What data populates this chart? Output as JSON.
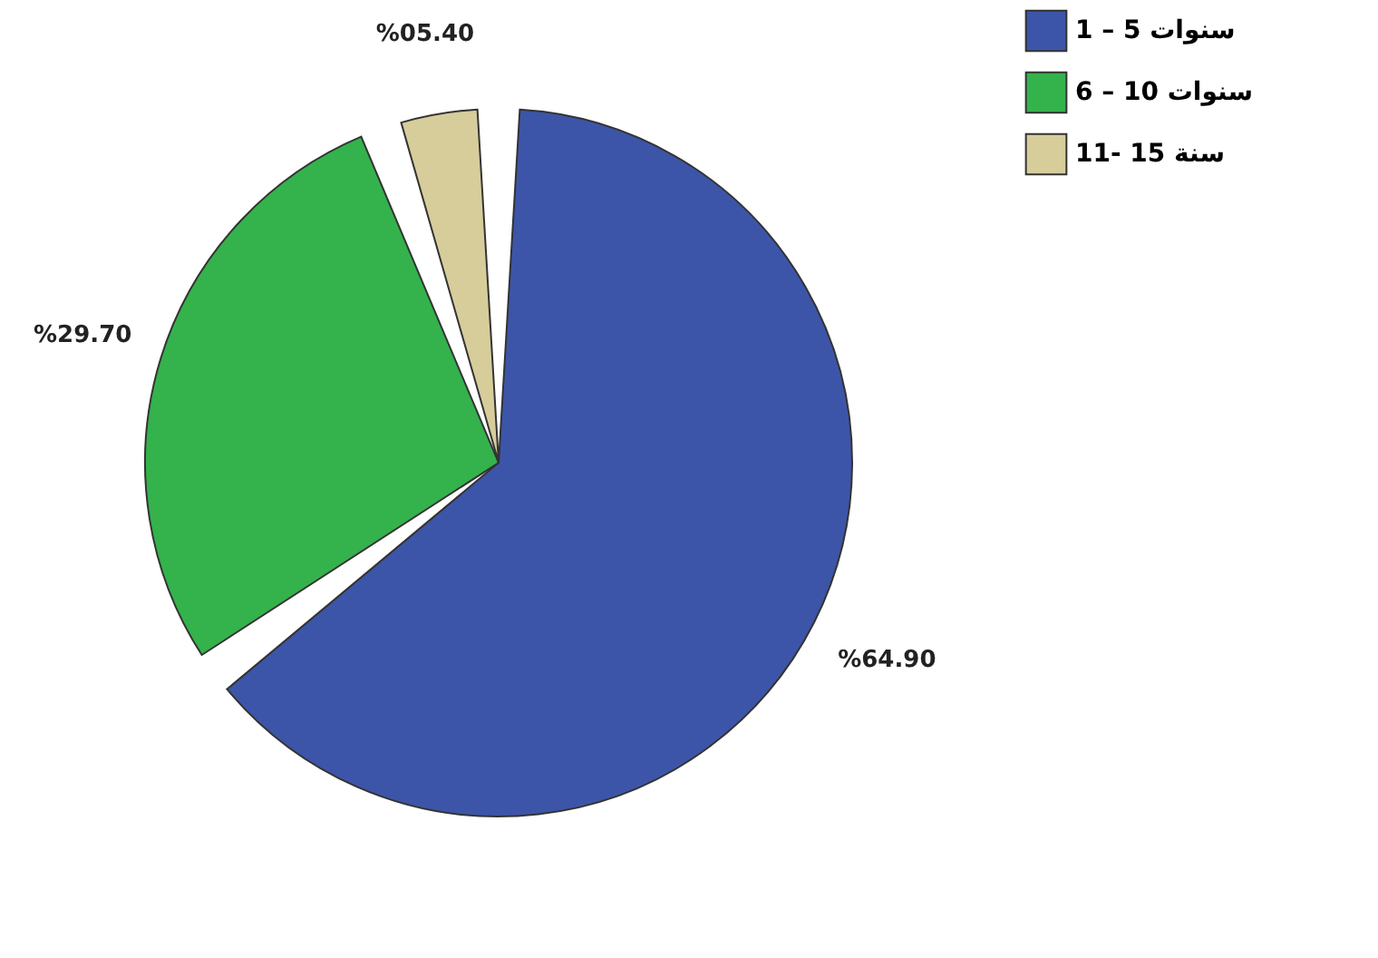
{
  "chart_data": {
    "type": "pie",
    "categories": [
      "1 – 5 سنوات",
      "6 – 10 سنوات",
      "11- 15 سنة"
    ],
    "values": [
      64.9,
      29.7,
      5.4
    ],
    "colors": [
      "#3d55a8",
      "#34b24c",
      "#d6cd9b"
    ],
    "value_labels": [
      "%64.90",
      "%29.70",
      "%05.40"
    ],
    "legend": "top right"
  }
}
